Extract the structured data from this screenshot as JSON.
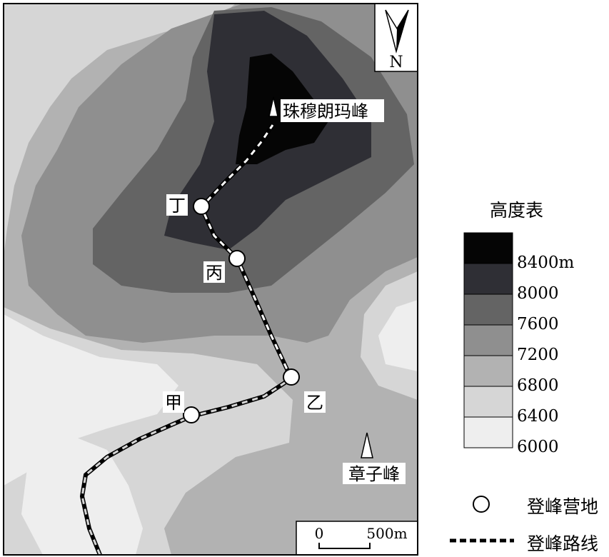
{
  "colors": {
    "band_6000": "#eeeeee",
    "band_6400": "#d6d6d6",
    "band_6800": "#b2b2b2",
    "band_7200": "#8f8f8f",
    "band_7600": "#646464",
    "band_8000": "#2f2f35",
    "band_8400": "#050505"
  },
  "map": {
    "north_label": "N",
    "peak_main": "珠穆朗玛峰",
    "peak_secondary": "章子峰",
    "camps": [
      {
        "id": "jia",
        "label": "甲"
      },
      {
        "id": "yi",
        "label": "乙"
      },
      {
        "id": "bing",
        "label": "丙"
      },
      {
        "id": "ding",
        "label": "丁"
      }
    ],
    "scale": {
      "zero": "0",
      "distance": "500m"
    }
  },
  "legend": {
    "title": "高度表",
    "ticks": [
      "8400m",
      "8000",
      "7600",
      "7200",
      "6800",
      "6400",
      "6000"
    ],
    "camp_symbol_label": "登峰营地",
    "route_symbol_label": "登峰路线"
  }
}
